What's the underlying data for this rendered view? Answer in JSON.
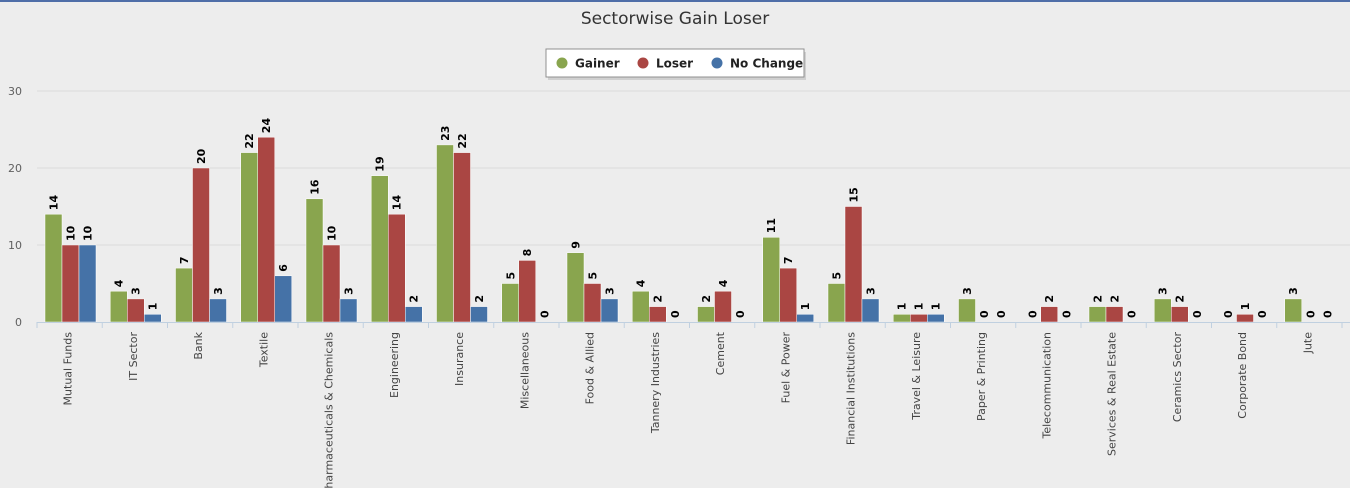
{
  "chart_data": {
    "type": "bar",
    "title": "Sectorwise Gain Loser",
    "xlabel": "",
    "ylabel": "",
    "ylim": [
      0,
      30
    ],
    "yticks": [
      0,
      10,
      20,
      30
    ],
    "legend_position": "top-center",
    "grid": true,
    "categories": [
      "Mutual Funds",
      "IT Sector",
      "Bank",
      "Textile",
      "Pharmaceuticals & Chemicals",
      "Engineering",
      "Insurance",
      "Miscellaneous",
      "Food & Allied",
      "Tannery Industries",
      "Cement",
      "Fuel & Power",
      "Financial Institutions",
      "Travel & Leisure",
      "Paper & Printing",
      "Telecommunication",
      "Services & Real Estate",
      "Ceramics Sector",
      "Corporate Bond",
      "Jute"
    ],
    "series": [
      {
        "name": "Gainer",
        "color": "#89a54e",
        "values": [
          14,
          4,
          7,
          22,
          16,
          19,
          23,
          5,
          9,
          4,
          2,
          11,
          5,
          1,
          3,
          0,
          2,
          3,
          0,
          3
        ]
      },
      {
        "name": "Loser",
        "color": "#aa4643",
        "values": [
          10,
          3,
          20,
          24,
          10,
          14,
          22,
          8,
          5,
          2,
          4,
          7,
          15,
          1,
          0,
          2,
          2,
          2,
          1,
          0
        ]
      },
      {
        "name": "No Change",
        "color": "#4572a7",
        "values": [
          10,
          1,
          3,
          6,
          3,
          2,
          2,
          0,
          3,
          0,
          0,
          1,
          3,
          1,
          0,
          0,
          0,
          0,
          0,
          0
        ]
      }
    ]
  }
}
